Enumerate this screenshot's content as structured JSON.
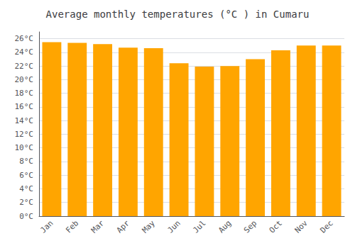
{
  "chart_data": {
    "type": "bar",
    "title": "Average monthly temperatures (°C ) in Cumaru",
    "categories": [
      "Jan",
      "Feb",
      "Mar",
      "Apr",
      "May",
      "Jun",
      "Jul",
      "Aug",
      "Sep",
      "Oct",
      "Nov",
      "Dec"
    ],
    "values": [
      25.5,
      25.4,
      25.2,
      24.7,
      24.6,
      22.4,
      21.9,
      22.0,
      23.0,
      24.3,
      25.0,
      25.0
    ],
    "color": "#FFA500",
    "ylim": [
      0,
      27
    ],
    "yticks": [
      {
        "value": 0,
        "label": "0°C"
      },
      {
        "value": 2,
        "label": "2°C"
      },
      {
        "value": 4,
        "label": "4°C"
      },
      {
        "value": 6,
        "label": "6°C"
      },
      {
        "value": 8,
        "label": "8°C"
      },
      {
        "value": 10,
        "label": "10°C"
      },
      {
        "value": 12,
        "label": "12°C"
      },
      {
        "value": 14,
        "label": "14°C"
      },
      {
        "value": 16,
        "label": "16°C"
      },
      {
        "value": 18,
        "label": "18°C"
      },
      {
        "value": 20,
        "label": "20°C"
      },
      {
        "value": 22,
        "label": "22°C"
      },
      {
        "value": 24,
        "label": "24°C"
      },
      {
        "value": 26,
        "label": "26°C"
      }
    ],
    "grid": true
  }
}
